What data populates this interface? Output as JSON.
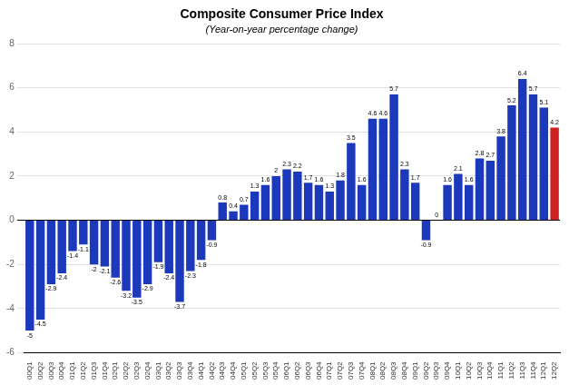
{
  "chart_data": {
    "type": "bar",
    "title": "Composite Consumer Price Index",
    "subtitle": "(Year-on-year percentage change)",
    "categories": [
      "00Q1",
      "00Q2",
      "00Q3",
      "00Q4",
      "01Q1",
      "01Q2",
      "01Q3",
      "01Q4",
      "02Q1",
      "02Q2",
      "02Q3",
      "02Q4",
      "03Q1",
      "03Q2",
      "03Q3",
      "03Q4",
      "04Q1",
      "04Q2",
      "04Q3",
      "04Q4",
      "05Q1",
      "05Q2",
      "05Q3",
      "05Q4",
      "06Q1",
      "06Q2",
      "06Q3",
      "06Q4",
      "07Q1",
      "07Q2",
      "07Q3",
      "07Q4",
      "08Q1",
      "08Q2",
      "08Q3",
      "08Q4",
      "09Q1",
      "09Q2",
      "09Q3",
      "09Q4",
      "10Q1",
      "10Q2",
      "10Q3",
      "10Q4",
      "11Q1",
      "11Q2",
      "11Q3",
      "11Q4",
      "12Q1",
      "12Q2"
    ],
    "values": [
      -5.0,
      -4.5,
      -2.9,
      -2.4,
      -1.4,
      -1.1,
      -2.0,
      -2.1,
      -2.6,
      -3.2,
      -3.5,
      -2.9,
      -1.9,
      -2.4,
      -3.7,
      -2.3,
      -1.8,
      -0.9,
      0.8,
      0.4,
      0.7,
      1.3,
      1.6,
      2.0,
      2.3,
      2.2,
      1.7,
      1.6,
      1.3,
      1.8,
      3.5,
      1.6,
      4.6,
      4.6,
      5.7,
      2.3,
      1.7,
      -0.9,
      0.0,
      1.6,
      2.1,
      1.6,
      2.8,
      2.7,
      3.8,
      5.2,
      6.4,
      5.7,
      5.1,
      4.2
    ],
    "colors": [
      "#1C39BB",
      "#1C39BB",
      "#1C39BB",
      "#1C39BB",
      "#1C39BB",
      "#1C39BB",
      "#1C39BB",
      "#1C39BB",
      "#1C39BB",
      "#1C39BB",
      "#1C39BB",
      "#1C39BB",
      "#1C39BB",
      "#1C39BB",
      "#1C39BB",
      "#1C39BB",
      "#1C39BB",
      "#1C39BB",
      "#1C39BB",
      "#1C39BB",
      "#1C39BB",
      "#1C39BB",
      "#1C39BB",
      "#1C39BB",
      "#1C39BB",
      "#1C39BB",
      "#1C39BB",
      "#1C39BB",
      "#1C39BB",
      "#1C39BB",
      "#1C39BB",
      "#1C39BB",
      "#1C39BB",
      "#1C39BB",
      "#1C39BB",
      "#1C39BB",
      "#1C39BB",
      "#1C39BB",
      "#1C39BB",
      "#1C39BB",
      "#1C39BB",
      "#1C39BB",
      "#1C39BB",
      "#1C39BB",
      "#1C39BB",
      "#1C39BB",
      "#1C39BB",
      "#1C39BB",
      "#1C39BB",
      "#CC2222"
    ],
    "ylim": [
      -6,
      8
    ],
    "yticks": [
      -6,
      -4,
      -2,
      0,
      2,
      4,
      6,
      8
    ],
    "grid": true,
    "data_labels": true
  }
}
